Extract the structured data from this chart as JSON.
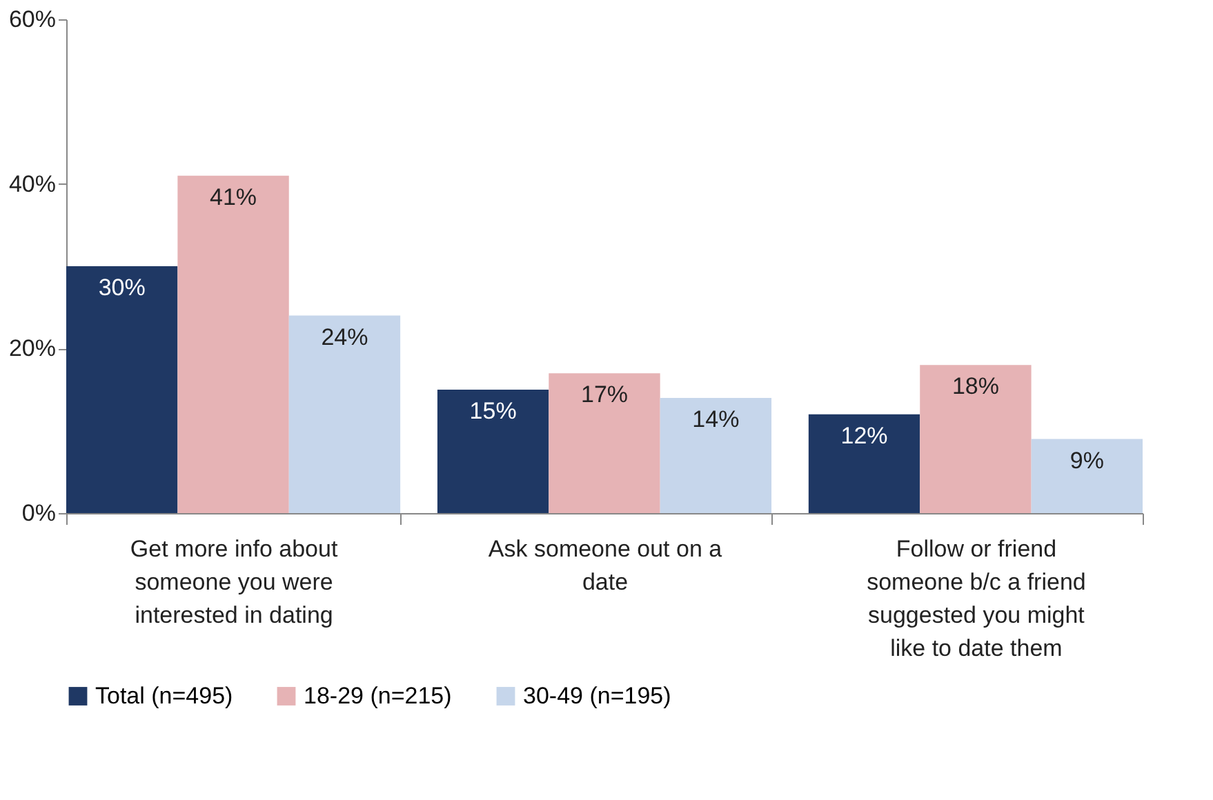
{
  "chart_data": {
    "type": "bar",
    "categories": [
      "Get more info about someone you were interested in dating",
      "Ask someone out on a date",
      "Follow or friend someone b/c a friend suggested you might like to date them"
    ],
    "series": [
      {
        "name": "Total (n=495)",
        "color": "#1f3864",
        "values": [
          30,
          15,
          12
        ]
      },
      {
        "name": "18-29 (n=215)",
        "color": "#e6b3b5",
        "values": [
          41,
          17,
          18
        ]
      },
      {
        "name": "30-49 (n=195)",
        "color": "#c6d6eb",
        "values": [
          24,
          14,
          9
        ]
      }
    ],
    "ylim": [
      0,
      60
    ],
    "yticks": [
      {
        "value": 0,
        "label": "0%"
      },
      {
        "value": 20,
        "label": "20%"
      },
      {
        "value": 40,
        "label": "40%"
      },
      {
        "value": 60,
        "label": "60%"
      }
    ],
    "value_labels": [
      [
        "30%",
        "15%",
        "12%"
      ],
      [
        "41%",
        "17%",
        "18%"
      ],
      [
        "24%",
        "14%",
        "9%"
      ]
    ],
    "grid": false,
    "legend": "bottom"
  }
}
